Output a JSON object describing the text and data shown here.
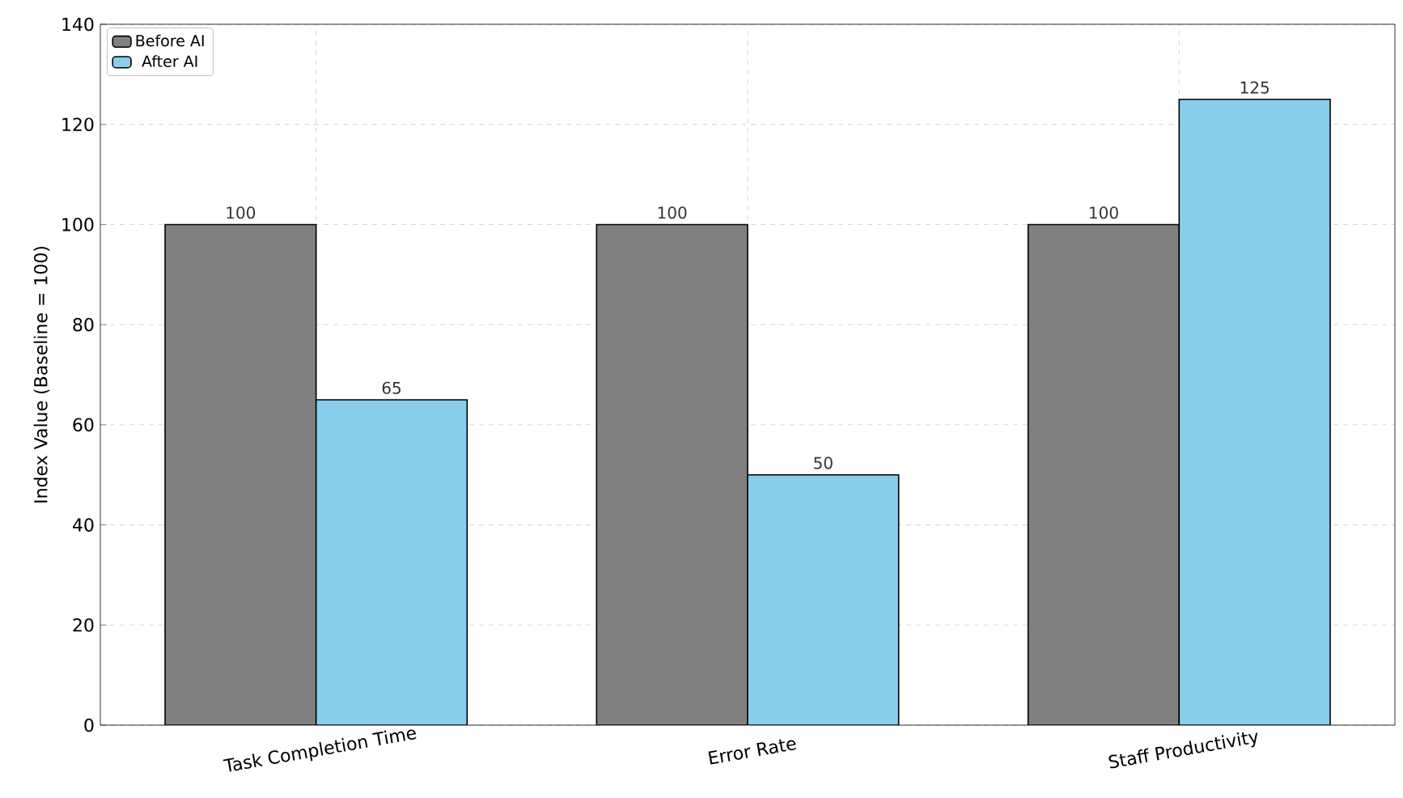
{
  "chart_data": {
    "type": "bar",
    "ylabel": "Index Value (Baseline = 100)",
    "categories": [
      "Task Completion Time",
      "Error Rate",
      "Staff Productivity"
    ],
    "series": [
      {
        "name": "Before AI",
        "color": "#808080",
        "values": [
          100,
          100,
          100
        ]
      },
      {
        "name": "After AI",
        "color": "#87ceeb",
        "values": [
          65,
          50,
          125
        ]
      }
    ],
    "ylim": [
      0,
      140
    ],
    "yticks": [
      0,
      20,
      40,
      60,
      80,
      100,
      120,
      140
    ],
    "grid": true,
    "legend": "top left",
    "data_labels": true
  }
}
